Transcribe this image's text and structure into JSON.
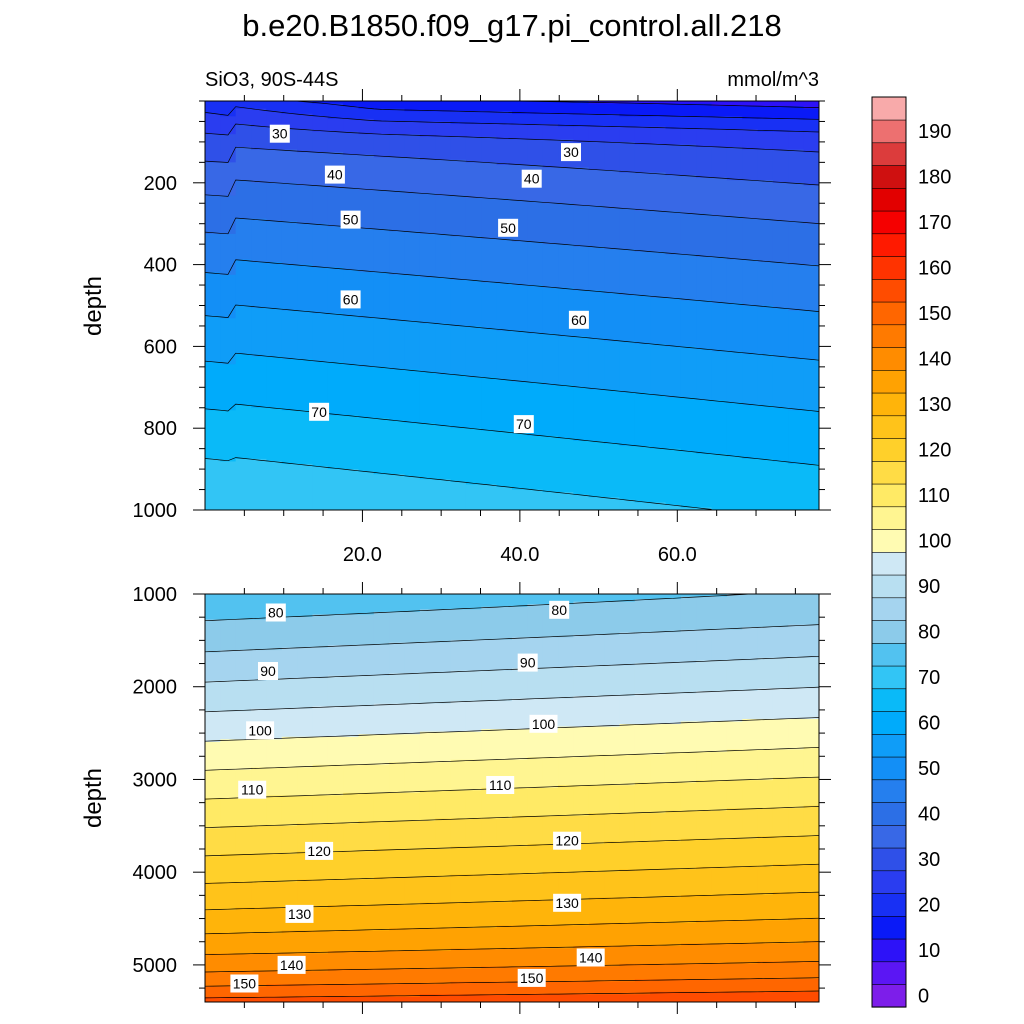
{
  "chart_data": {
    "type": "contour",
    "title": "b.e20.B1850.f09_g17.pi_control.all.218",
    "subtitle_left": "SiO3, 90S-44S",
    "subtitle_right": "mmol/m^3",
    "x": {
      "min": 0,
      "max": 78,
      "ticks": [
        20,
        40,
        60
      ],
      "tick_labels": [
        "20.0",
        "40.0",
        "60.0"
      ]
    },
    "upper_panel": {
      "ylabel": "depth",
      "ylim": [
        0,
        1000
      ],
      "yticks": [
        200,
        400,
        600,
        800,
        1000
      ],
      "ytick_labels": [
        "200",
        "400",
        "600",
        "800",
        "1000"
      ],
      "contour_labels": [
        {
          "text": "30",
          "x": 9.5,
          "y": 80
        },
        {
          "text": "30",
          "x": 46.5,
          "y": 125
        },
        {
          "text": "40",
          "x": 16.5,
          "y": 180
        },
        {
          "text": "40",
          "x": 41.5,
          "y": 190
        },
        {
          "text": "50",
          "x": 18.5,
          "y": 290
        },
        {
          "text": "50",
          "x": 38.5,
          "y": 310
        },
        {
          "text": "60",
          "x": 18.5,
          "y": 485
        },
        {
          "text": "60",
          "x": 47.5,
          "y": 535
        },
        {
          "text": "70",
          "x": 14.5,
          "y": 760
        },
        {
          "text": "70",
          "x": 40.5,
          "y": 790
        }
      ]
    },
    "lower_panel": {
      "ylabel": "depth",
      "ylim": [
        1000,
        5400
      ],
      "yticks": [
        1000,
        2000,
        3000,
        4000,
        5000
      ],
      "ytick_labels": [
        "1000",
        "2000",
        "3000",
        "4000",
        "5000"
      ],
      "contour_labels": [
        {
          "text": "80",
          "x": 9,
          "y": 1200
        },
        {
          "text": "80",
          "x": 45,
          "y": 1170
        },
        {
          "text": "90",
          "x": 8,
          "y": 1830
        },
        {
          "text": "90",
          "x": 41,
          "y": 1740
        },
        {
          "text": "100",
          "x": 7,
          "y": 2470
        },
        {
          "text": "100",
          "x": 43,
          "y": 2400
        },
        {
          "text": "110",
          "x": 6,
          "y": 3110
        },
        {
          "text": "110",
          "x": 37.5,
          "y": 3060
        },
        {
          "text": "120",
          "x": 14.5,
          "y": 3770
        },
        {
          "text": "120",
          "x": 46,
          "y": 3660
        },
        {
          "text": "130",
          "x": 12,
          "y": 4450
        },
        {
          "text": "130",
          "x": 46,
          "y": 4330
        },
        {
          "text": "140",
          "x": 11,
          "y": 5000
        },
        {
          "text": "140",
          "x": 49,
          "y": 4920
        },
        {
          "text": "150",
          "x": 5,
          "y": 5200
        },
        {
          "text": "150",
          "x": 41.5,
          "y": 5140
        }
      ]
    },
    "levels": [
      0,
      5,
      10,
      15,
      20,
      25,
      30,
      35,
      40,
      45,
      50,
      55,
      60,
      65,
      70,
      75,
      80,
      85,
      90,
      95,
      100,
      105,
      110,
      115,
      120,
      125,
      130,
      135,
      140,
      145,
      150,
      155,
      160,
      165,
      170,
      175,
      180,
      185,
      190,
      195
    ],
    "colorbar": {
      "tick_values": [
        0,
        10,
        20,
        30,
        40,
        50,
        60,
        70,
        80,
        90,
        100,
        110,
        120,
        130,
        140,
        150,
        160,
        170,
        180,
        190
      ],
      "tick_labels": [
        "0",
        "10",
        "20",
        "30",
        "40",
        "50",
        "60",
        "70",
        "80",
        "90",
        "100",
        "110",
        "120",
        "130",
        "140",
        "150",
        "160",
        "170",
        "180",
        "190"
      ],
      "colors": [
        "#7d1eea",
        "#5b16f4",
        "#2d12f8",
        "#0a1af7",
        "#1830f4",
        "#2a3df0",
        "#2f50e8",
        "#3868e6",
        "#2c6fe6",
        "#257fee",
        "#138ff6",
        "#0f9df8",
        "#00abfb",
        "#0abaf8",
        "#32c5f5",
        "#52c2f0",
        "#8ccbea",
        "#a5d4ef",
        "#b8dff1",
        "#cfe8f5",
        "#fffbb2",
        "#fff591",
        "#ffea65",
        "#ffdc45",
        "#ffd02a",
        "#ffc31a",
        "#ffb40a",
        "#ffa202",
        "#ff8c00",
        "#ff7a00",
        "#ff6600",
        "#ff4c00",
        "#ff3300",
        "#ff1a00",
        "#f50000",
        "#e20000",
        "#cf1010",
        "#dc3c3c",
        "#ed7070",
        "#f8aaaa"
      ]
    }
  }
}
